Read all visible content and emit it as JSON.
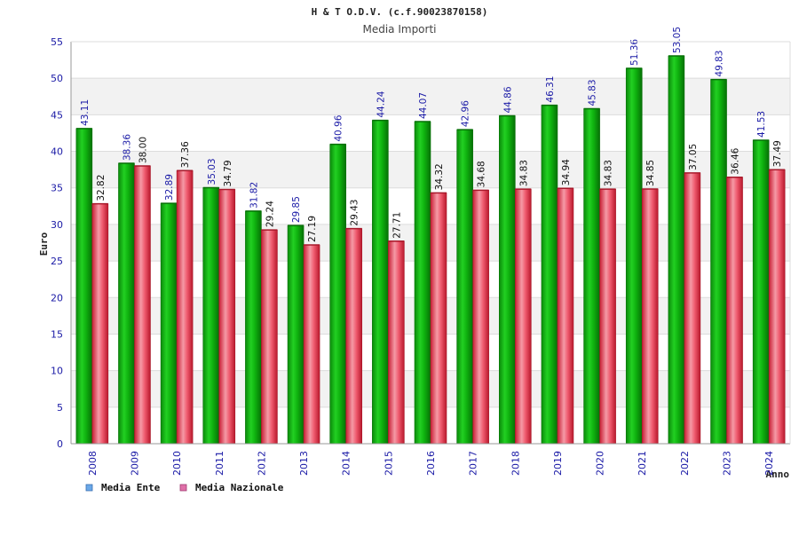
{
  "chart_data": {
    "type": "bar",
    "title": "H & T O.D.V. (c.f.90023870158)",
    "subtitle": "Media Importi",
    "xlabel": "Anno",
    "ylabel": "Euro",
    "ylim": [
      0,
      55
    ],
    "yticks": [
      0,
      5,
      10,
      15,
      20,
      25,
      30,
      35,
      40,
      45,
      50,
      55
    ],
    "grid": true,
    "legend_position": "bottom-left",
    "categories": [
      "2008",
      "2009",
      "2010",
      "2011",
      "2012",
      "2013",
      "2014",
      "2015",
      "2016",
      "2017",
      "2018",
      "2019",
      "2020",
      "2021",
      "2022",
      "2023",
      "2024"
    ],
    "series": [
      {
        "name": "Media Ente",
        "color": "#11b711",
        "legend_color": "#6aa8e8",
        "values": [
          43.11,
          38.36,
          32.89,
          35.03,
          31.82,
          29.85,
          40.96,
          44.24,
          44.07,
          42.96,
          44.86,
          46.31,
          45.83,
          51.36,
          53.05,
          49.83,
          41.53
        ],
        "labels": [
          "43.11",
          "38.36",
          "32.89",
          "35.03",
          "31.82",
          "29.85",
          "40.96",
          "44.24",
          "44.07",
          "42.96",
          "44.86",
          "46.31",
          "45.83",
          "51.36",
          "53.05",
          "49.83",
          "41.53"
        ]
      },
      {
        "name": "Media Nazionale",
        "color": "#e8364e",
        "legend_color": "#e070a8",
        "values": [
          32.82,
          38.0,
          37.36,
          34.79,
          29.24,
          27.19,
          29.43,
          27.71,
          34.32,
          34.68,
          34.83,
          34.94,
          34.83,
          34.85,
          37.05,
          36.46,
          37.49
        ],
        "labels": [
          "32.82",
          "38.00",
          "37.36",
          "34.79",
          "29.24",
          "27.19",
          "29.43",
          "27.71",
          "34.32",
          "34.68",
          "34.83",
          "34.94",
          "34.83",
          "34.85",
          "37.05",
          "36.46",
          "37.49"
        ]
      }
    ]
  }
}
